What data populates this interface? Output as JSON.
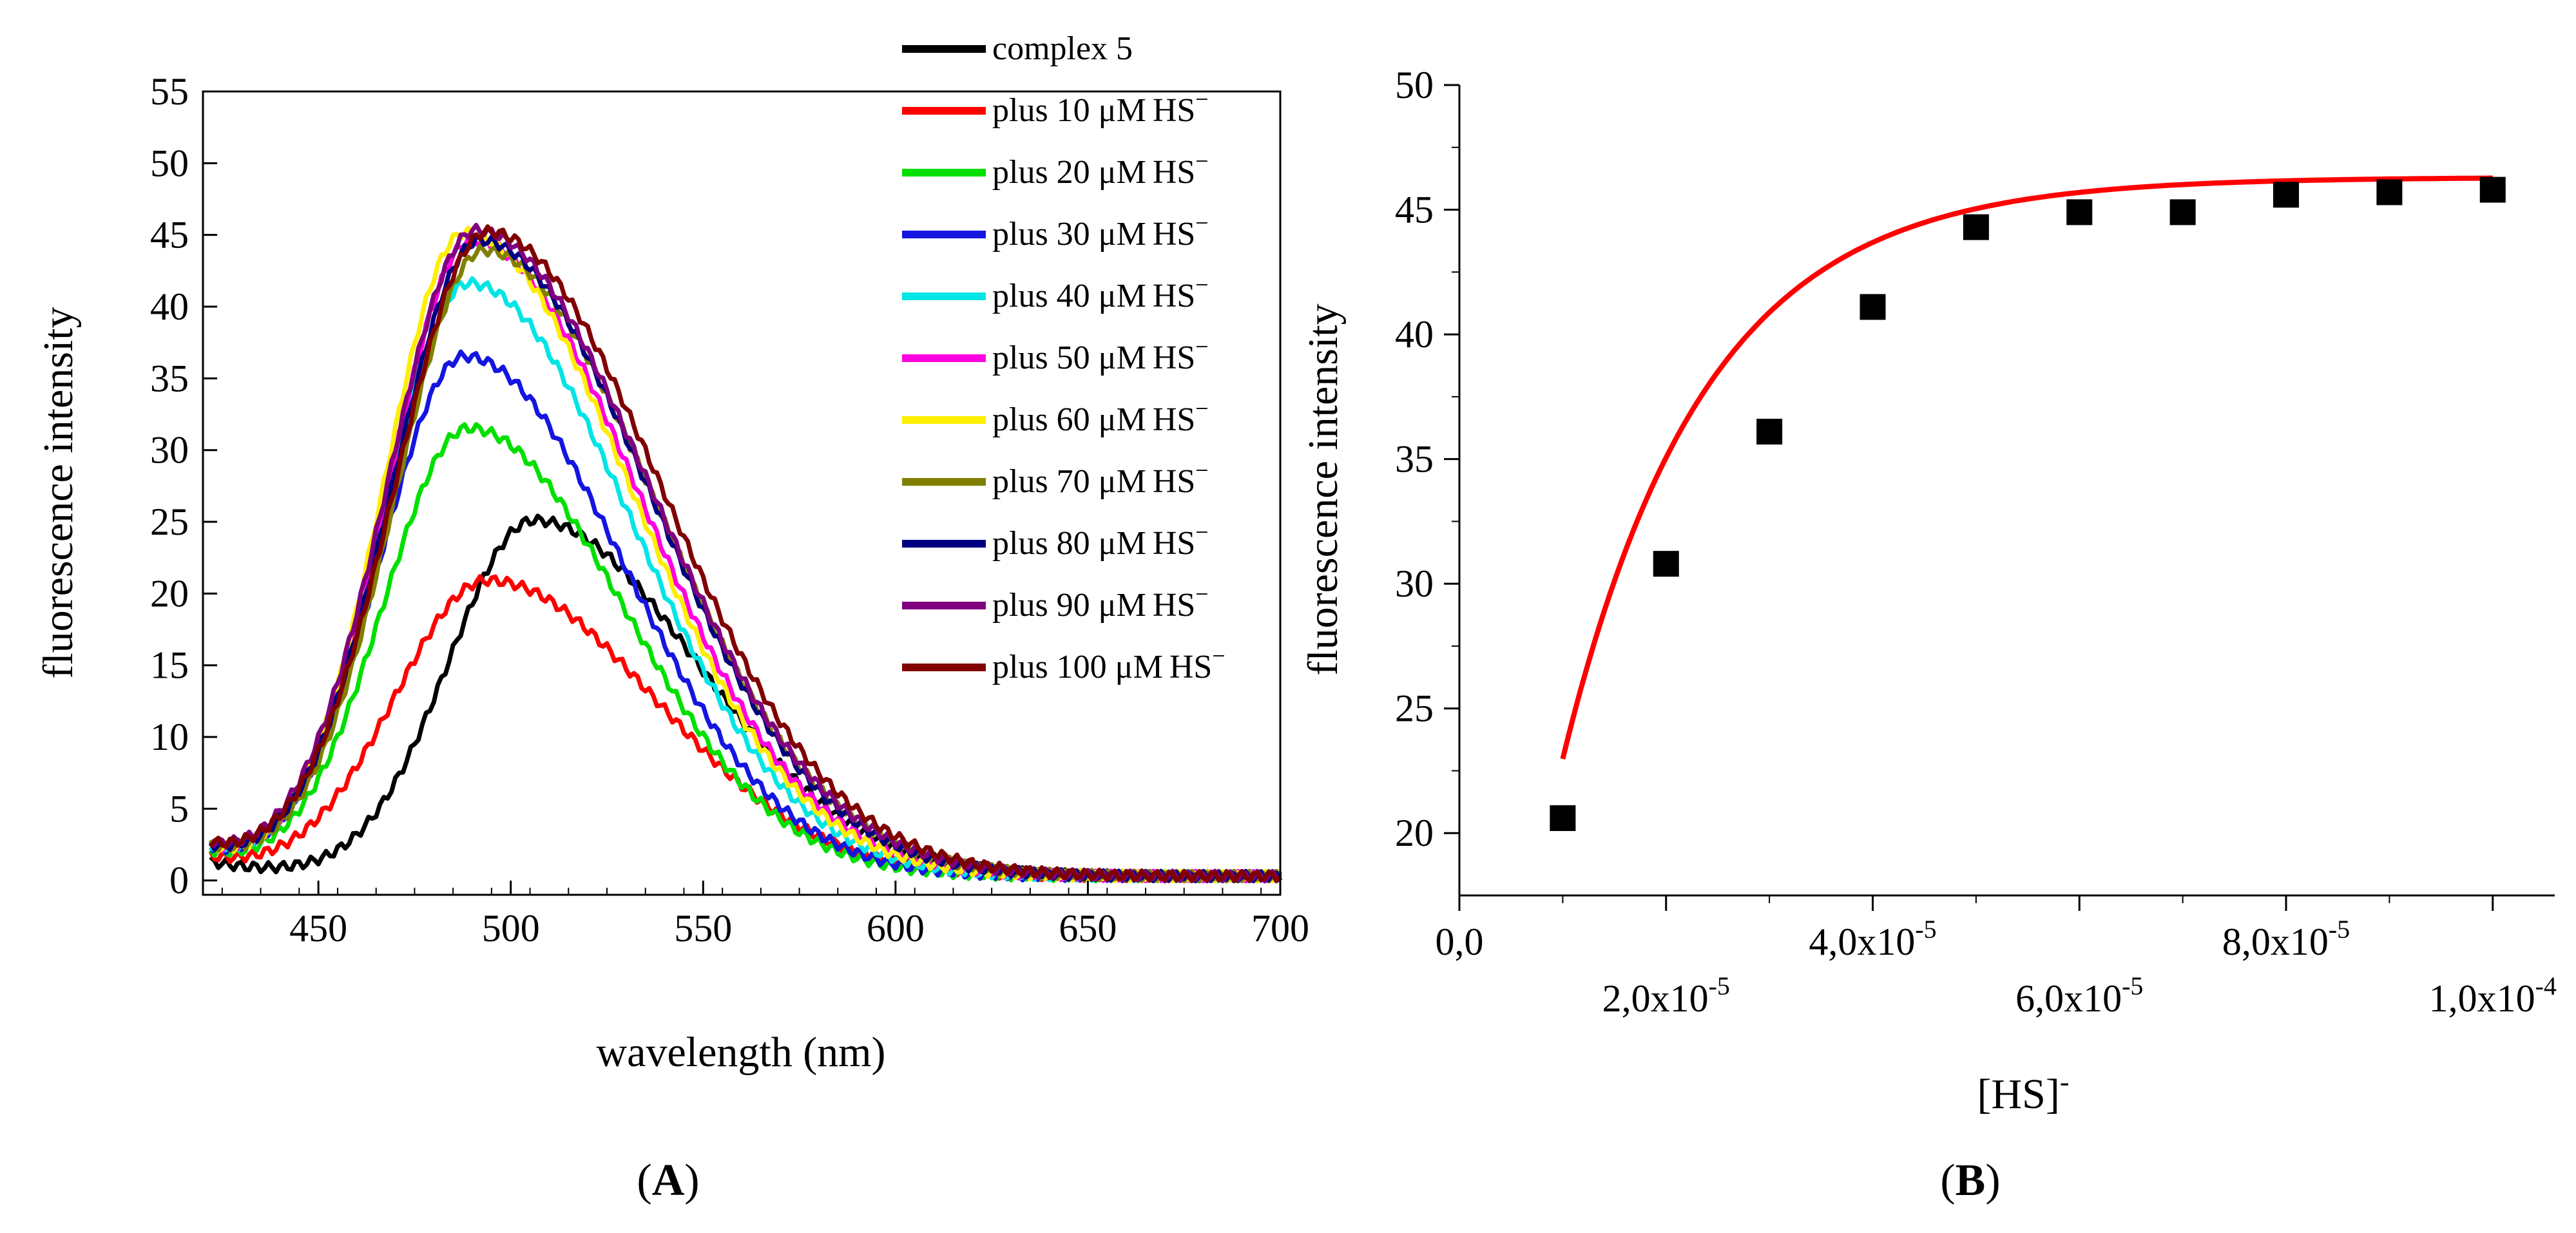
{
  "chart_data": [
    {
      "panel": "(A)",
      "panel_letter": "A",
      "type": "line",
      "xlabel": "wavelength (nm)",
      "ylabel": "fluorescence intensity",
      "xlim": [
        420,
        700
      ],
      "ylim": [
        -1,
        55
      ],
      "xticks": [
        450,
        500,
        550,
        600,
        650,
        700
      ],
      "xtick_labels": [
        "450",
        "500",
        "550",
        "600",
        "650",
        "700"
      ],
      "yticks": [
        0,
        5,
        10,
        15,
        20,
        25,
        30,
        35,
        40,
        45,
        50,
        55
      ],
      "ytick_labels": [
        "0",
        "5",
        "10",
        "15",
        "20",
        "25",
        "30",
        "35",
        "40",
        "45",
        "50",
        "55"
      ],
      "legend_position": "top-right, outside plot",
      "series": [
        {
          "name": "complex 5",
          "label": "complex 5",
          "unit": "",
          "color": "#000000",
          "peak_x": 506,
          "peak_y": 24.8,
          "width_left": 22,
          "width_right": 42,
          "bg": 1.0
        },
        {
          "name": "plus 10 μM HS⁻",
          "label": "plus 10 μM",
          "unit": "HS",
          "color": "#ff0000",
          "peak_x": 494,
          "peak_y": 20.6,
          "width_left": 24,
          "width_right": 43,
          "bg": 1.2
        },
        {
          "name": "plus 20 μM HS⁻",
          "label": "plus 20 μM",
          "unit": "HS",
          "color": "#00e000",
          "peak_x": 489,
          "peak_y": 31.2,
          "width_left": 22,
          "width_right": 40,
          "bg": 1.5
        },
        {
          "name": "plus 30 μM HS⁻",
          "label": "plus 30 μM",
          "unit": "HS",
          "color": "#1515e0",
          "peak_x": 488,
          "peak_y": 36.2,
          "width_left": 22,
          "width_right": 41,
          "bg": 1.6
        },
        {
          "name": "plus 40 μM HS⁻",
          "label": "plus 40 μM",
          "unit": "HS",
          "color": "#00e5e5",
          "peak_x": 489,
          "peak_y": 41.3,
          "width_left": 22,
          "width_right": 42,
          "bg": 1.7
        },
        {
          "name": "plus 50 μM HS⁻",
          "label": "plus 50 μM",
          "unit": "HS",
          "color": "#ff00e0",
          "peak_x": 490,
          "peak_y": 44.3,
          "width_left": 22,
          "width_right": 43,
          "bg": 1.8
        },
        {
          "name": "plus 60 μM HS⁻",
          "label": "plus 60 μM",
          "unit": "HS",
          "color": "#ffee00",
          "peak_x": 488,
          "peak_y": 44.8,
          "width_left": 21,
          "width_right": 43,
          "bg": 1.8
        },
        {
          "name": "plus 70 μM HS⁻",
          "label": "plus 70 μM",
          "unit": "HS",
          "color": "#808000",
          "peak_x": 493,
          "peak_y": 43.6,
          "width_left": 23,
          "width_right": 44,
          "bg": 1.8
        },
        {
          "name": "plus 80 μM HS⁻",
          "label": "plus 80 μM",
          "unit": "HS",
          "color": "#000080",
          "peak_x": 492,
          "peak_y": 44.3,
          "width_left": 23,
          "width_right": 44,
          "bg": 1.8
        },
        {
          "name": "plus 90 μM HS⁻",
          "label": "plus 90 μM",
          "unit": "HS",
          "color": "#800080",
          "peak_x": 491,
          "peak_y": 45.0,
          "width_left": 23,
          "width_right": 45,
          "bg": 1.9
        },
        {
          "name": "plus 100 μM HS⁻",
          "label": "plus 100 μM",
          "unit": "HS",
          "color": "#800000",
          "peak_x": 494,
          "peak_y": 44.9,
          "width_left": 24,
          "width_right": 45,
          "bg": 1.9
        }
      ]
    },
    {
      "panel": "(B)",
      "panel_letter": "B",
      "type": "scatter",
      "xlabel": "[HS]",
      "xlabel_sup": "-",
      "ylabel": "fluorescence intensity",
      "xlim": [
        0,
        0.000106
      ],
      "ylim": [
        17.5,
        50
      ],
      "xticks": [
        0,
        2e-05,
        4e-05,
        6e-05,
        8e-05,
        0.0001
      ],
      "xtick_labels": [
        {
          "base": "0,0",
          "sup": ""
        },
        {
          "base": "2,0x10",
          "sup": "-5"
        },
        {
          "base": "4,0x10",
          "sup": "-5"
        },
        {
          "base": "6,0x10",
          "sup": "-5"
        },
        {
          "base": "8,0x10",
          "sup": "-5"
        },
        {
          "base": "1,0x10",
          "sup": "-4"
        }
      ],
      "yticks": [
        20,
        25,
        30,
        35,
        40,
        45,
        50
      ],
      "ytick_labels": [
        "20",
        "25",
        "30",
        "35",
        "40",
        "45",
        "50"
      ],
      "points": {
        "x": [
          1e-05,
          2e-05,
          3e-05,
          4e-05,
          5e-05,
          6e-05,
          7e-05,
          8e-05,
          9e-05,
          0.0001
        ],
        "y": [
          20.6,
          30.8,
          36.1,
          41.1,
          44.3,
          44.9,
          44.9,
          45.6,
          45.7,
          45.8
        ]
      },
      "marker_color": "#000000",
      "fit": {
        "model": "exponential rise",
        "y_max": 46.3,
        "amplitude": 48.4,
        "tau": 1.37e-05,
        "x_range": [
          1e-05,
          0.0001
        ],
        "color": "#ff0000"
      }
    }
  ]
}
